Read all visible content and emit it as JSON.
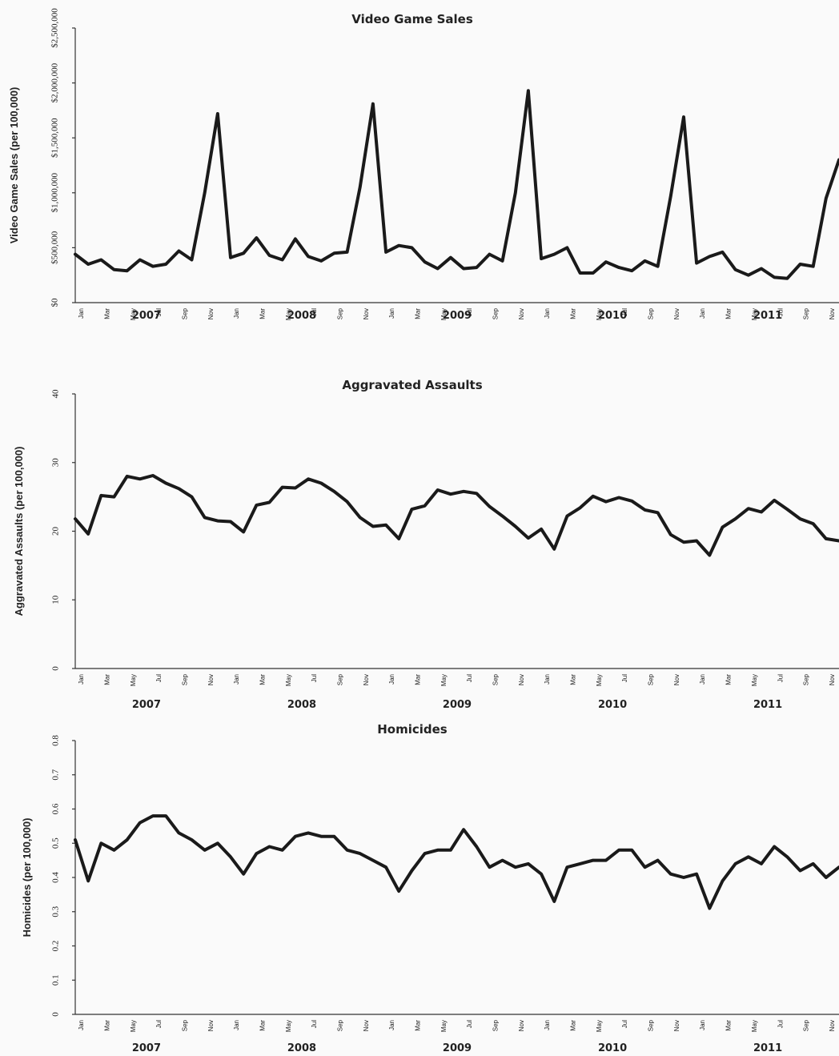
{
  "chart_data": [
    {
      "type": "line",
      "title": "Video Game Sales",
      "ylabel": "Video Game Sales (per 100,000)",
      "xlabel": "",
      "ylim": [
        0,
        2500000
      ],
      "yticks": [
        0,
        500000,
        1000000,
        1500000,
        2000000,
        2500000
      ],
      "ytick_labels": [
        "$0",
        "$500,000",
        "$1,000,000",
        "$1,500,000",
        "$2,000,000",
        "$2,500,000"
      ],
      "month_labels": [
        "Jan",
        "Mar",
        "May",
        "Jul",
        "Sep",
        "Nov"
      ],
      "years": [
        "2007",
        "2008",
        "2009",
        "2010",
        "2011"
      ],
      "grid": false,
      "series": [
        {
          "values": [
            440000,
            350000,
            390000,
            300000,
            290000,
            390000,
            330000,
            350000,
            470000,
            390000,
            1000000,
            1720000,
            410000,
            450000,
            590000,
            430000,
            390000,
            580000,
            420000,
            380000,
            450000,
            460000,
            1050000,
            1810000,
            460000,
            520000,
            500000,
            370000,
            310000,
            410000,
            310000,
            320000,
            440000,
            380000,
            1000000,
            1930000,
            400000,
            440000,
            500000,
            270000,
            270000,
            370000,
            320000,
            290000,
            380000,
            330000,
            970000,
            1690000,
            360000,
            420000,
            460000,
            300000,
            250000,
            310000,
            230000,
            220000,
            350000,
            330000,
            950000,
            1300000
          ]
        }
      ]
    },
    {
      "type": "line",
      "title": "Aggravated Assaults",
      "ylabel": "Aggravated Assaults (per 100,000)",
      "xlabel": "",
      "ylim": [
        0,
        40
      ],
      "yticks": [
        0,
        10,
        20,
        30,
        40
      ],
      "ytick_labels": [
        "0",
        "10",
        "20",
        "30",
        "40"
      ],
      "month_labels": [
        "Jan",
        "Mar",
        "May",
        "Jul",
        "Sep",
        "Nov"
      ],
      "years": [
        "2007",
        "2008",
        "2009",
        "2010",
        "2011"
      ],
      "grid": false,
      "series": [
        {
          "values": [
            21.8,
            19.6,
            25.2,
            25.0,
            28.0,
            27.6,
            28.1,
            27.0,
            26.2,
            25.0,
            22.0,
            21.5,
            21.4,
            19.9,
            23.8,
            24.2,
            26.4,
            26.3,
            27.6,
            27.0,
            25.8,
            24.3,
            22.0,
            20.7,
            20.9,
            18.9,
            23.2,
            23.7,
            26.0,
            25.4,
            25.8,
            25.5,
            23.6,
            22.2,
            20.7,
            19.0,
            20.3,
            17.4,
            22.2,
            23.4,
            25.1,
            24.3,
            24.9,
            24.4,
            23.1,
            22.7,
            19.5,
            18.4,
            18.6,
            16.5,
            20.6,
            21.8,
            23.3,
            22.8,
            24.5,
            23.2,
            21.8,
            21.1,
            18.9,
            18.6
          ]
        }
      ]
    },
    {
      "type": "line",
      "title": "Homicides",
      "ylabel": "Homicides (per 100,000)",
      "xlabel": "",
      "ylim": [
        0,
        0.8
      ],
      "yticks": [
        0,
        0.1,
        0.2,
        0.3,
        0.4,
        0.5,
        0.6,
        0.7,
        0.8
      ],
      "ytick_labels": [
        "0",
        "0.1",
        "0.2",
        "0.3",
        "0.4",
        "0.5",
        "0.6",
        "0.7",
        "0.8"
      ],
      "month_labels": [
        "Jan",
        "Mar",
        "May",
        "Jul",
        "Sep",
        "Nov"
      ],
      "years": [
        "2007",
        "2008",
        "2009",
        "2010",
        "2011"
      ],
      "grid": false,
      "series": [
        {
          "values": [
            0.51,
            0.39,
            0.5,
            0.48,
            0.51,
            0.56,
            0.58,
            0.58,
            0.53,
            0.51,
            0.48,
            0.5,
            0.46,
            0.41,
            0.47,
            0.49,
            0.48,
            0.52,
            0.53,
            0.52,
            0.52,
            0.48,
            0.47,
            0.45,
            0.43,
            0.36,
            0.42,
            0.47,
            0.48,
            0.48,
            0.54,
            0.49,
            0.43,
            0.45,
            0.43,
            0.44,
            0.41,
            0.33,
            0.43,
            0.44,
            0.45,
            0.45,
            0.48,
            0.48,
            0.43,
            0.45,
            0.41,
            0.4,
            0.41,
            0.31,
            0.39,
            0.44,
            0.46,
            0.44,
            0.49,
            0.46,
            0.42,
            0.44,
            0.4,
            0.43
          ]
        }
      ]
    }
  ]
}
